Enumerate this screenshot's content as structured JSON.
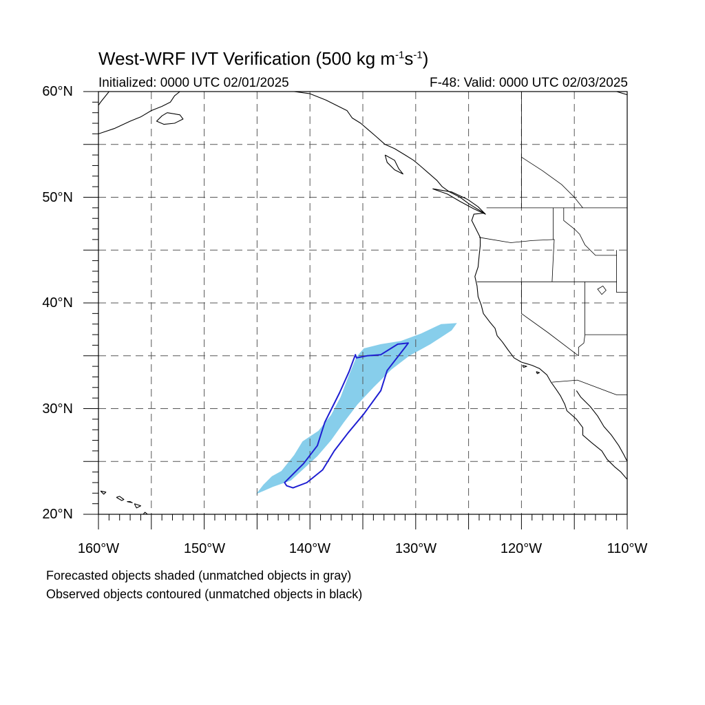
{
  "title": {
    "prefix": "West-WRF IVT Verification (500 kg m",
    "exp1": "-1",
    "mid": "s",
    "exp2": "-1",
    "suffix": ")"
  },
  "initialized": "Initialized: 0000 UTC 02/01/2025",
  "valid": "F-48: Valid: 0000 UTC 02/03/2025",
  "lat_labels": [
    "60°N",
    "50°N",
    "40°N",
    "30°N",
    "20°N"
  ],
  "lon_labels": [
    "160°W",
    "150°W",
    "140°W",
    "130°W",
    "120°W",
    "110°W"
  ],
  "notes": [
    "Forecasted objects shaded (unmatched objects in gray)",
    "Observed objects contoured (unmatched objects in black)"
  ],
  "map": {
    "lon_range": [
      -160,
      -110
    ],
    "lat_range": [
      20,
      60
    ],
    "grid_lons": [
      -155,
      -150,
      -145,
      -140,
      -135,
      -130,
      -125,
      -120,
      -115
    ],
    "grid_lats": [
      25,
      30,
      35,
      40,
      45,
      50,
      55
    ],
    "colors": {
      "forecast_fill": "#87ceeb",
      "observed_contour": "#1e1ed2",
      "coast": "#000000",
      "grid": "#555555"
    },
    "forecast_object": [
      [
        -145.1,
        21.9
      ],
      [
        -143.5,
        22.6
      ],
      [
        -141.8,
        23.2
      ],
      [
        -140.6,
        24.3
      ],
      [
        -139.3,
        25.5
      ],
      [
        -138.0,
        27.0
      ],
      [
        -136.8,
        28.7
      ],
      [
        -135.5,
        30.4
      ],
      [
        -134.0,
        32.0
      ],
      [
        -132.3,
        33.7
      ],
      [
        -130.6,
        35.0
      ],
      [
        -128.6,
        36.1
      ],
      [
        -126.6,
        37.4
      ],
      [
        -126.1,
        38.1
      ],
      [
        -127.6,
        38.0
      ],
      [
        -129.5,
        37.1
      ],
      [
        -131.4,
        36.4
      ],
      [
        -133.3,
        36.1
      ],
      [
        -134.9,
        35.7
      ],
      [
        -135.6,
        34.9
      ],
      [
        -136.3,
        33.2
      ],
      [
        -137.1,
        31.1
      ],
      [
        -138.0,
        29.4
      ],
      [
        -139.2,
        27.9
      ],
      [
        -140.7,
        26.9
      ],
      [
        -141.5,
        25.6
      ],
      [
        -142.7,
        24.1
      ],
      [
        -143.6,
        23.6
      ],
      [
        -144.4,
        22.8
      ]
    ],
    "observed_object": [
      [
        -142.2,
        22.7
      ],
      [
        -141.6,
        22.5
      ],
      [
        -140.3,
        23.0
      ],
      [
        -138.8,
        24.2
      ],
      [
        -137.7,
        26.0
      ],
      [
        -136.4,
        27.7
      ],
      [
        -134.9,
        29.5
      ],
      [
        -133.3,
        31.7
      ],
      [
        -132.7,
        33.6
      ],
      [
        -131.0,
        35.8
      ],
      [
        -130.7,
        36.2
      ],
      [
        -131.7,
        36.1
      ],
      [
        -133.3,
        35.1
      ],
      [
        -134.6,
        35.0
      ],
      [
        -135.6,
        34.8
      ],
      [
        -135.7,
        35.1
      ],
      [
        -136.3,
        33.5
      ],
      [
        -137.2,
        31.5
      ],
      [
        -138.6,
        28.7
      ],
      [
        -139.3,
        26.5
      ],
      [
        -140.6,
        24.8
      ],
      [
        -141.8,
        23.6
      ],
      [
        -142.4,
        23.0
      ]
    ],
    "coastlines": [
      [
        [
          -160.0,
          56.0
        ],
        [
          -158.5,
          56.5
        ],
        [
          -157.0,
          57.2
        ],
        [
          -156.0,
          57.6
        ],
        [
          -155.0,
          58.2
        ],
        [
          -154.0,
          58.6
        ],
        [
          -153.2,
          59.0
        ],
        [
          -152.8,
          59.6
        ],
        [
          -152.3,
          60.0
        ]
      ],
      [
        [
          -153.5,
          58.0
        ],
        [
          -152.3,
          57.8
        ],
        [
          -152.0,
          57.4
        ],
        [
          -152.8,
          57.0
        ],
        [
          -153.8,
          56.9
        ],
        [
          -154.5,
          57.2
        ],
        [
          -154.0,
          57.7
        ],
        [
          -153.5,
          58.0
        ]
      ],
      [
        [
          -159.0,
          60.0
        ],
        [
          -159.8,
          59.0
        ],
        [
          -160.0,
          58.7
        ]
      ],
      [
        [
          -149.5,
          60.0
        ],
        [
          -148.0,
          60.0
        ],
        [
          -146.5,
          60.0
        ],
        [
          -144.8,
          60.0
        ],
        [
          -143.0,
          60.0
        ]
      ],
      [
        [
          -141.5,
          60.0
        ],
        [
          -140.0,
          59.8
        ],
        [
          -138.5,
          59.2
        ],
        [
          -137.3,
          58.6
        ],
        [
          -136.5,
          58.2
        ],
        [
          -136.0,
          57.5
        ],
        [
          -135.2,
          57.0
        ],
        [
          -134.5,
          56.4
        ],
        [
          -133.8,
          55.8
        ],
        [
          -132.9,
          55.0
        ],
        [
          -132.0,
          54.6
        ],
        [
          -131.0,
          54.0
        ],
        [
          -130.2,
          53.5
        ],
        [
          -129.6,
          53.0
        ],
        [
          -128.8,
          52.3
        ],
        [
          -128.0,
          51.6
        ],
        [
          -127.5,
          51.0
        ],
        [
          -126.8,
          50.5
        ],
        [
          -125.8,
          50.0
        ],
        [
          -125.0,
          49.4
        ],
        [
          -124.2,
          48.9
        ],
        [
          -123.5,
          48.5
        ],
        [
          -124.5,
          48.4
        ],
        [
          -124.7,
          47.8
        ],
        [
          -124.2,
          46.8
        ],
        [
          -123.9,
          46.2
        ],
        [
          -123.9,
          45.4
        ],
        [
          -124.0,
          44.5
        ],
        [
          -124.1,
          43.4
        ],
        [
          -124.4,
          42.5
        ],
        [
          -124.2,
          41.6
        ],
        [
          -124.1,
          40.6
        ],
        [
          -123.8,
          39.8
        ],
        [
          -123.6,
          39.0
        ],
        [
          -123.0,
          38.2
        ],
        [
          -122.5,
          37.6
        ],
        [
          -122.3,
          36.9
        ],
        [
          -121.8,
          36.3
        ],
        [
          -121.3,
          35.6
        ],
        [
          -120.7,
          34.8
        ],
        [
          -120.0,
          34.4
        ],
        [
          -119.0,
          34.1
        ],
        [
          -118.3,
          33.8
        ],
        [
          -117.6,
          33.2
        ],
        [
          -117.2,
          32.5
        ],
        [
          -116.7,
          31.8
        ],
        [
          -116.3,
          31.2
        ],
        [
          -115.9,
          30.4
        ],
        [
          -115.7,
          29.8
        ],
        [
          -114.8,
          29.0
        ],
        [
          -114.2,
          28.2
        ],
        [
          -114.2,
          27.5
        ],
        [
          -113.4,
          26.8
        ],
        [
          -112.4,
          26.0
        ],
        [
          -111.9,
          25.2
        ],
        [
          -111.2,
          24.5
        ],
        [
          -110.6,
          24.0
        ],
        [
          -110.0,
          23.3
        ]
      ],
      [
        [
          -114.8,
          31.7
        ],
        [
          -114.4,
          31.1
        ],
        [
          -113.5,
          30.2
        ],
        [
          -112.8,
          29.3
        ],
        [
          -112.2,
          28.3
        ],
        [
          -111.5,
          27.5
        ],
        [
          -110.8,
          26.5
        ],
        [
          -110.3,
          25.6
        ],
        [
          -110.0,
          25.0
        ]
      ],
      [
        [
          -132.9,
          54.0
        ],
        [
          -132.0,
          53.5
        ],
        [
          -131.6,
          52.7
        ],
        [
          -131.2,
          52.2
        ],
        [
          -132.0,
          52.6
        ],
        [
          -132.7,
          53.3
        ],
        [
          -132.9,
          54.0
        ]
      ],
      [
        [
          -128.4,
          50.8
        ],
        [
          -127.0,
          50.3
        ],
        [
          -125.8,
          49.6
        ],
        [
          -124.5,
          48.9
        ],
        [
          -123.4,
          48.4
        ],
        [
          -124.1,
          49.1
        ],
        [
          -125.1,
          49.8
        ],
        [
          -126.6,
          50.5
        ],
        [
          -128.4,
          50.8
        ]
      ],
      [
        [
          -110.0,
          59.7
        ],
        [
          -111.0,
          60.0
        ]
      ],
      [
        [
          -155.6,
          20.2
        ],
        [
          -154.9,
          19.6
        ],
        [
          -155.7,
          19.0
        ],
        [
          -156.0,
          19.7
        ],
        [
          -155.6,
          20.2
        ]
      ],
      [
        [
          -156.6,
          21.0
        ],
        [
          -156.0,
          20.8
        ],
        [
          -156.4,
          20.6
        ],
        [
          -156.6,
          21.0
        ]
      ],
      [
        [
          -158.3,
          21.6
        ],
        [
          -157.8,
          21.3
        ],
        [
          -157.6,
          21.4
        ],
        [
          -158.0,
          21.7
        ],
        [
          -158.3,
          21.6
        ]
      ],
      [
        [
          -159.8,
          22.2
        ],
        [
          -159.3,
          22.1
        ],
        [
          -159.5,
          21.9
        ],
        [
          -159.8,
          22.2
        ]
      ],
      [
        [
          -157.3,
          21.2
        ],
        [
          -156.8,
          21.1
        ],
        [
          -157.0,
          21.2
        ],
        [
          -157.3,
          21.2
        ]
      ],
      [
        [
          -118.6,
          33.5
        ],
        [
          -118.3,
          33.4
        ],
        [
          -118.5,
          33.3
        ],
        [
          -118.6,
          33.5
        ]
      ],
      [
        [
          -119.9,
          34.1
        ],
        [
          -119.5,
          34.0
        ],
        [
          -119.8,
          33.9
        ],
        [
          -119.9,
          34.1
        ]
      ]
    ],
    "boundaries": [
      [
        [
          -123.3,
          49.0
        ],
        [
          -120.0,
          49.0
        ],
        [
          -116.0,
          49.0
        ],
        [
          -110.0,
          49.0
        ]
      ],
      [
        [
          -124.0,
          46.2
        ],
        [
          -121.0,
          45.7
        ],
        [
          -119.0,
          45.9
        ],
        [
          -116.9,
          46.0
        ],
        [
          -117.0,
          44.2
        ],
        [
          -117.1,
          42.0
        ]
      ],
      [
        [
          -117.0,
          49.0
        ],
        [
          -117.0,
          46.0
        ]
      ],
      [
        [
          -124.2,
          42.0
        ],
        [
          -120.0,
          42.0
        ],
        [
          -114.0,
          42.0
        ],
        [
          -111.0,
          42.0
        ]
      ],
      [
        [
          -120.0,
          42.0
        ],
        [
          -120.0,
          39.0
        ],
        [
          -117.5,
          37.2
        ],
        [
          -114.6,
          35.0
        ]
      ],
      [
        [
          -114.0,
          42.0
        ],
        [
          -114.0,
          37.0
        ],
        [
          -114.1,
          36.2
        ],
        [
          -114.6,
          35.8
        ],
        [
          -114.6,
          35.0
        ]
      ],
      [
        [
          -114.0,
          37.0
        ],
        [
          -110.0,
          37.0
        ]
      ],
      [
        [
          -117.1,
          32.5
        ],
        [
          -114.7,
          32.7
        ],
        [
          -111.0,
          31.3
        ],
        [
          -110.0,
          31.3
        ]
      ],
      [
        [
          -116.0,
          49.0
        ],
        [
          -116.0,
          47.8
        ],
        [
          -115.0,
          47.0
        ],
        [
          -114.5,
          46.5
        ],
        [
          -114.0,
          45.5
        ],
        [
          -113.0,
          44.5
        ],
        [
          -111.0,
          44.5
        ]
      ],
      [
        [
          -111.0,
          45.0
        ],
        [
          -111.0,
          41.0
        ],
        [
          -110.0,
          41.0
        ]
      ],
      [
        [
          -120.0,
          60.0
        ],
        [
          -120.0,
          49.0
        ]
      ],
      [
        [
          -122.5,
          60.0
        ],
        [
          -121.0,
          60.0
        ]
      ],
      [
        [
          -120.0,
          53.8
        ],
        [
          -118.0,
          52.5
        ],
        [
          -116.2,
          51.2
        ],
        [
          -115.0,
          50.0
        ],
        [
          -114.2,
          49.0
        ]
      ]
    ],
    "lakes": [
      [
        [
          -112.8,
          41.3
        ],
        [
          -112.3,
          41.6
        ],
        [
          -112.0,
          41.2
        ],
        [
          -112.4,
          40.8
        ],
        [
          -112.8,
          41.3
        ]
      ]
    ]
  }
}
